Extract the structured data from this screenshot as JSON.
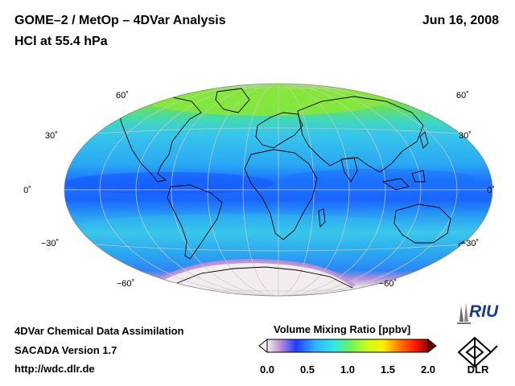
{
  "header": {
    "title": "GOME–2 / MetOp – 4DVar Analysis",
    "subtitle": "HCl at 55.4 hPa",
    "date": "Jun 16, 2008"
  },
  "map": {
    "projection": "Hammer-Aitoff (global)",
    "latitude_labels": {
      "n60": "60˚",
      "n30": "30˚",
      "eq": "0˚",
      "s30": "−30˚",
      "s60": "−60˚"
    }
  },
  "colorbar": {
    "title": "Volume Mixing Ratio [ppbv]",
    "ticks": [
      "0.0",
      "0.5",
      "1.0",
      "1.5",
      "2.0"
    ],
    "min": 0.0,
    "max": 2.0,
    "colors": [
      "#f4efee",
      "#c08fd8",
      "#1e3cff",
      "#2fb4ff",
      "#35e8e6",
      "#6ef25a",
      "#c8ff1e",
      "#ffee00",
      "#ff7a00",
      "#ff1a00",
      "#9a0000"
    ]
  },
  "footer": {
    "line1": "4DVar Chemical Data Assimilation",
    "line2": "SACADA Version 1.7",
    "line3": "http://wdc.dlr.de"
  },
  "logos": {
    "riu": "RIU",
    "dlr": "DLR"
  }
}
